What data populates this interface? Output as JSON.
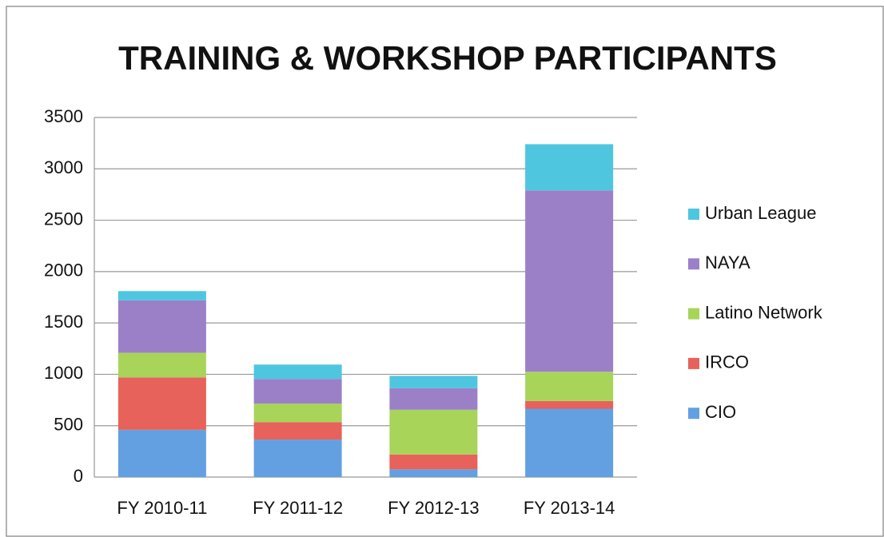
{
  "chart_data": {
    "type": "stacked_bar",
    "title": "TRAINING & WORKSHOP PARTICIPANTS",
    "categories": [
      "FY 2010-11",
      "FY 2011-12",
      "FY 2012-13",
      "FY 2013-14"
    ],
    "series": [
      {
        "name": "CIO",
        "color": "#63a0e2",
        "values": [
          460,
          365,
          75,
          665
        ]
      },
      {
        "name": "IRCO",
        "color": "#e7625a",
        "values": [
          510,
          170,
          145,
          75
        ]
      },
      {
        "name": "Latino Network",
        "color": "#a8d45a",
        "values": [
          240,
          180,
          435,
          285
        ]
      },
      {
        "name": "NAYA",
        "color": "#9b80c8",
        "values": [
          510,
          240,
          210,
          1765
        ]
      },
      {
        "name": "Urban League",
        "color": "#4ec6e0",
        "values": [
          90,
          140,
          120,
          450
        ]
      }
    ],
    "ylim": [
      0,
      3500
    ],
    "yticks": [
      0,
      500,
      1000,
      1500,
      2000,
      2500,
      3000,
      3500
    ],
    "grid": true,
    "legend": "right"
  }
}
